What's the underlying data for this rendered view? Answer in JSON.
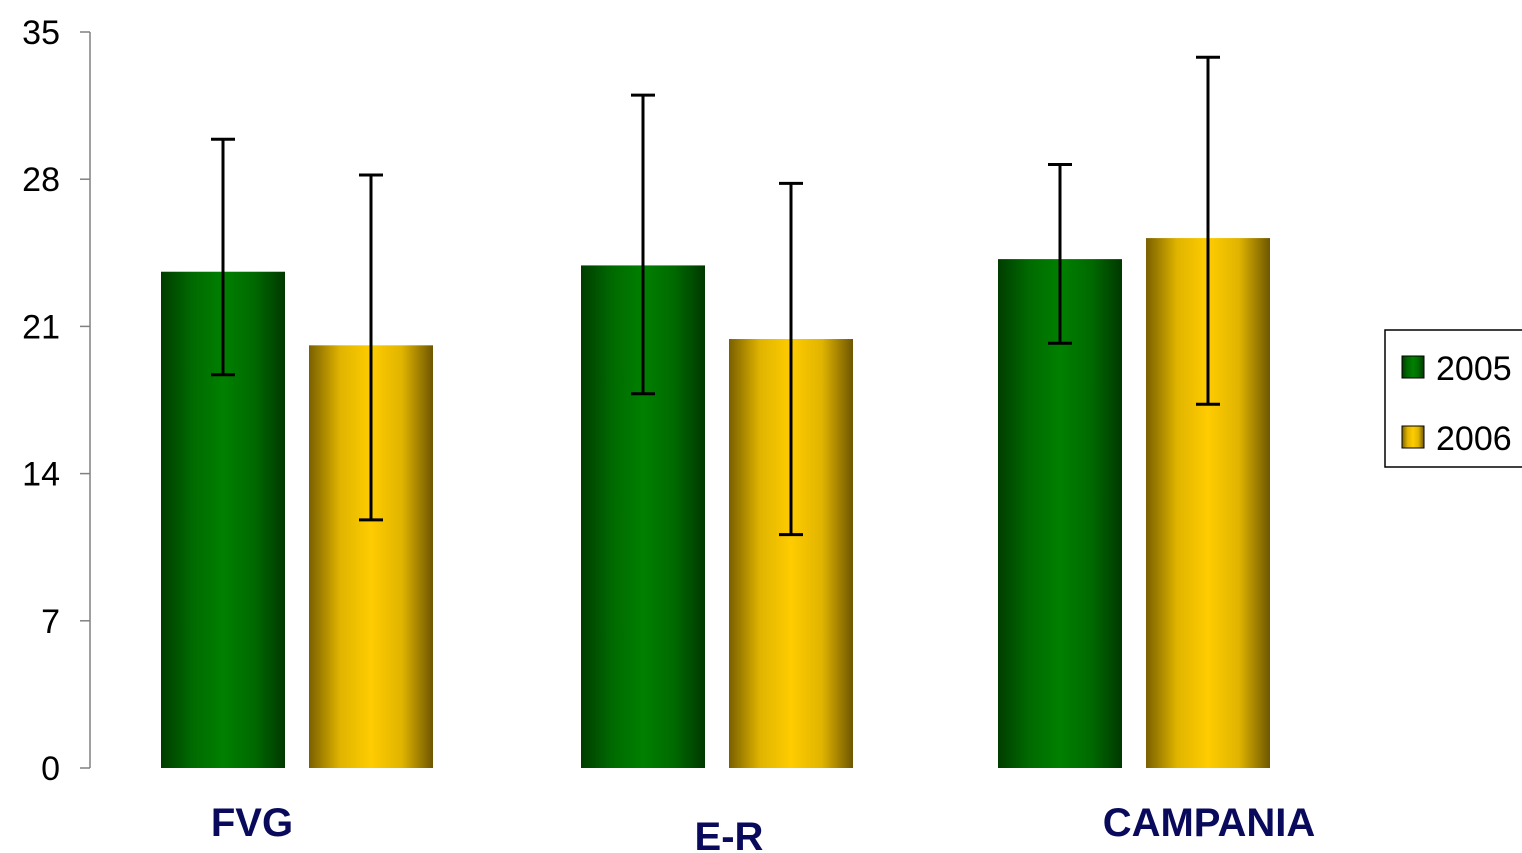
{
  "chart_data": {
    "type": "bar",
    "categories": [
      "FVG",
      "E-R",
      "CAMPANIA"
    ],
    "series": [
      {
        "name": "2005",
        "values": [
          23.6,
          23.9,
          24.2
        ],
        "error_low": [
          18.7,
          17.8,
          20.2
        ],
        "error_high": [
          29.9,
          32.0,
          28.7
        ],
        "color": "#008000"
      },
      {
        "name": "2006",
        "values": [
          20.1,
          20.4,
          25.2
        ],
        "error_low": [
          11.8,
          11.1,
          17.3
        ],
        "error_high": [
          28.2,
          27.8,
          33.8
        ],
        "color": "#ffcc00"
      }
    ],
    "ylim": [
      0,
      35
    ],
    "yticks": [
      0,
      7,
      14,
      21,
      28,
      35
    ],
    "ytick_labels": [
      "0",
      "7",
      "14",
      "21",
      "28",
      "35"
    ],
    "title": "",
    "xlabel": "",
    "ylabel": "",
    "legend": {
      "position": "right",
      "entries": [
        "2005",
        "2006"
      ]
    },
    "grid": false
  }
}
